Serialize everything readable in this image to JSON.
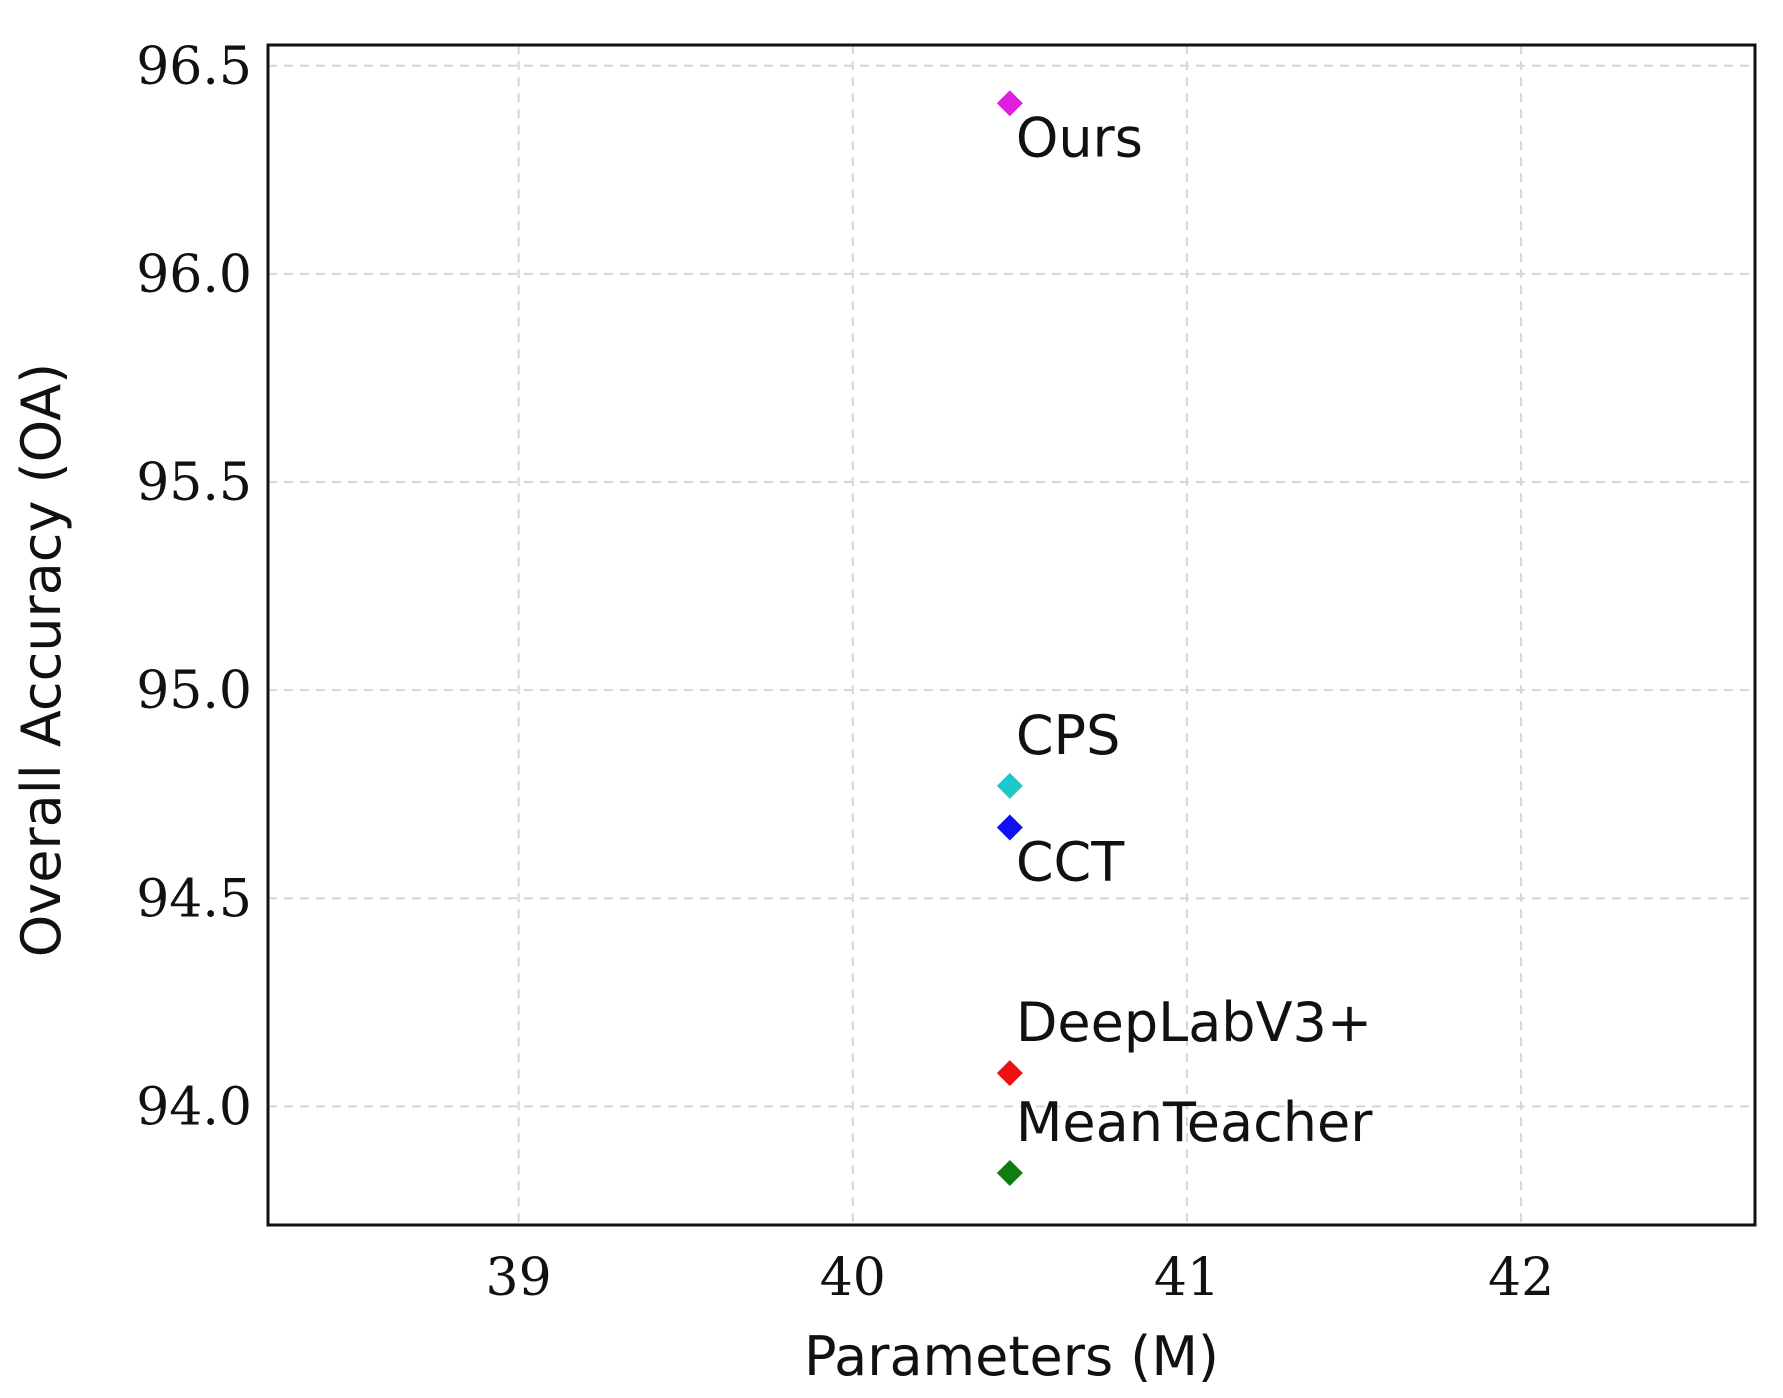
{
  "chart_data": {
    "type": "scatter",
    "xlabel": "Parameters (M)",
    "ylabel": "Overall Accuracy (OA)",
    "xlim": [
      38.25,
      42.7
    ],
    "ylim": [
      93.715,
      96.55
    ],
    "xticks": [
      39,
      40,
      41,
      42
    ],
    "xtick_labels": [
      "39",
      "40",
      "41",
      "42"
    ],
    "yticks": [
      94.0,
      94.5,
      95.0,
      95.5,
      96.0,
      96.5
    ],
    "ytick_labels": [
      "94.0",
      "94.5",
      "95.0",
      "95.5",
      "96.0",
      "96.5"
    ],
    "grid": true,
    "marker": "diamond",
    "points": [
      {
        "label": "Ours",
        "x": 40.47,
        "y": 96.41,
        "color": "#e01ee0",
        "label_pos": "below-right"
      },
      {
        "label": "CPS",
        "x": 40.47,
        "y": 94.77,
        "color": "#1fc8c8",
        "label_pos": "above-right"
      },
      {
        "label": "CCT",
        "x": 40.47,
        "y": 94.67,
        "color": "#1010f0",
        "label_pos": "below-right"
      },
      {
        "label": "DeepLabV3+",
        "x": 40.47,
        "y": 94.08,
        "color": "#f01010",
        "label_pos": "above-right"
      },
      {
        "label": "MeanTeacher",
        "x": 40.47,
        "y": 93.84,
        "color": "#0f7d0f",
        "label_pos": "above-right"
      }
    ]
  }
}
